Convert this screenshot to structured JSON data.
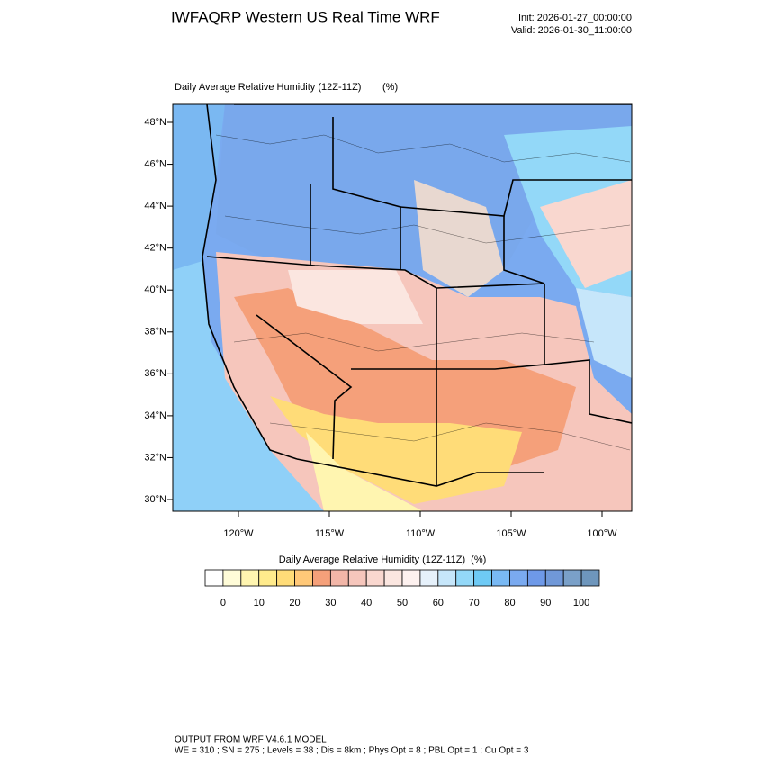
{
  "header": {
    "title": "IWFAQRP Western US Real Time WRF",
    "init": "Init: 2026-01-27_00:00:00",
    "valid": "Valid: 2026-01-30_11:00:00"
  },
  "map": {
    "subtitle": "Daily Average Relative Humidity (12Z-11Z)",
    "units": "(%)",
    "lat_labels": [
      "30°N",
      "32°N",
      "34°N",
      "36°N",
      "38°N",
      "40°N",
      "42°N",
      "44°N",
      "46°N",
      "48°N"
    ],
    "lon_labels": [
      "120°W",
      "115°W",
      "110°W",
      "105°W",
      "100°W"
    ]
  },
  "colorbar": {
    "title": "Daily Average Relative Humidity (12Z-11Z)",
    "units": "(%)",
    "labels": [
      0,
      10,
      20,
      30,
      40,
      50,
      60,
      70,
      80,
      90,
      100
    ],
    "colors": [
      "#ffffff",
      "#fffcd8",
      "#fff5b0",
      "#ffeb8c",
      "#ffdc78",
      "#ffc878",
      "#f5a07a",
      "#f2b6a8",
      "#f6c6bc",
      "#f9d7cf",
      "#fbe6e0",
      "#fdf1ef",
      "#e6f1fb",
      "#c6e6fa",
      "#93d8f8",
      "#6ecaf5",
      "#79b9f4",
      "#7aaaf0",
      "#6e99e8",
      "#7098d8",
      "#7aa0c8",
      "#6e96bc"
    ]
  },
  "footer": {
    "line1": "OUTPUT FROM WRF V4.6.1 MODEL",
    "line2": "WE = 310 ; SN = 275 ; Levels = 38 ; Dis = 8km ; Phys Opt = 8 ; PBL Opt = 1 ; Cu Opt = 3"
  }
}
